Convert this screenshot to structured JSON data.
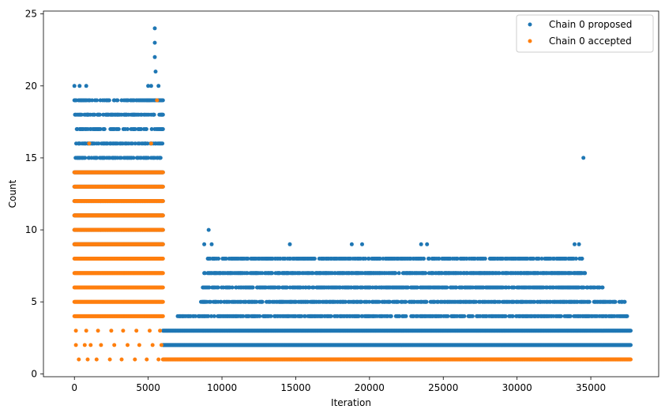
{
  "chart_data": {
    "type": "scatter",
    "title": "",
    "xlabel": "Iteration",
    "ylabel": "Count",
    "xlim": [
      -2100,
      39600
    ],
    "ylim": [
      -0.2,
      25.2
    ],
    "xticks": [
      0,
      5000,
      10000,
      15000,
      20000,
      25000,
      30000,
      35000
    ],
    "xtick_labels": [
      "0",
      "5000",
      "10000",
      "15000",
      "20000",
      "25000",
      "30000",
      "35000"
    ],
    "yticks": [
      0,
      5,
      10,
      15,
      20,
      25
    ],
    "ytick_labels": [
      "0",
      "5",
      "10",
      "15",
      "20",
      "25"
    ],
    "grid": false,
    "legend_position": "top-right",
    "marker": "dot",
    "series": [
      {
        "name": "Chain 0 proposed",
        "color": "#1f77b4",
        "points": [
          [
            0,
            20
          ],
          [
            100,
            18
          ],
          [
            200,
            17
          ],
          [
            300,
            16
          ],
          [
            350,
            20
          ],
          [
            500,
            19
          ],
          [
            800,
            20
          ],
          [
            900,
            18
          ],
          [
            1000,
            19
          ],
          [
            1100,
            17
          ],
          [
            4200,
            19
          ],
          [
            4500,
            18
          ],
          [
            4800,
            19
          ],
          [
            5000,
            20
          ],
          [
            5200,
            20
          ],
          [
            5300,
            19
          ],
          [
            5450,
            24
          ],
          [
            5450,
            23
          ],
          [
            5450,
            22
          ],
          [
            5500,
            21
          ],
          [
            5700,
            20
          ],
          [
            5900,
            19
          ],
          [
            8800,
            9
          ],
          [
            9100,
            10
          ],
          [
            9300,
            9
          ],
          [
            9500,
            8
          ],
          [
            14600,
            9
          ],
          [
            14400,
            7
          ],
          [
            18800,
            9
          ],
          [
            19500,
            9
          ],
          [
            19300,
            8
          ],
          [
            22600,
            8
          ],
          [
            23500,
            9
          ],
          [
            23900,
            9
          ],
          [
            24000,
            8
          ],
          [
            27800,
            7
          ],
          [
            29600,
            8
          ],
          [
            30100,
            8
          ],
          [
            30800,
            7
          ],
          [
            32800,
            7
          ],
          [
            33600,
            8
          ],
          [
            33900,
            9
          ],
          [
            34200,
            9
          ],
          [
            34400,
            8
          ],
          [
            34500,
            15
          ],
          [
            34600,
            7
          ],
          [
            35800,
            6
          ],
          [
            37300,
            5
          ],
          [
            3000,
            17
          ],
          [
            2000,
            16
          ]
        ],
        "bands": [
          {
            "y": 2,
            "from": 6000,
            "to": 37700
          },
          {
            "y": 3,
            "from": 6000,
            "to": 37700
          },
          {
            "y": 4,
            "from": 7000,
            "to": 37500
          },
          {
            "y": 5,
            "from": 8500,
            "to": 37300
          },
          {
            "y": 6,
            "from": 8700,
            "to": 35800
          },
          {
            "y": 7,
            "from": 8800,
            "to": 34600
          },
          {
            "y": 8,
            "from": 9000,
            "to": 34400
          },
          {
            "y": 9,
            "from": 0,
            "to": 6000
          },
          {
            "y": 10,
            "from": 0,
            "to": 6000
          },
          {
            "y": 11,
            "from": 0,
            "to": 6000
          },
          {
            "y": 12,
            "from": 0,
            "to": 6000
          },
          {
            "y": 13,
            "from": 0,
            "to": 6000
          },
          {
            "y": 14,
            "from": 0,
            "to": 6000
          },
          {
            "y": 15,
            "from": 0,
            "to": 6000
          },
          {
            "y": 16,
            "from": 0,
            "to": 6000
          },
          {
            "y": 17,
            "from": 0,
            "to": 6000
          },
          {
            "y": 18,
            "from": 0,
            "to": 6000
          },
          {
            "y": 19,
            "from": 0,
            "to": 6000
          }
        ]
      },
      {
        "name": "Chain 0 accepted",
        "color": "#ff7f0e",
        "points": [
          [
            100,
            2
          ],
          [
            300,
            1
          ],
          [
            700,
            2
          ],
          [
            900,
            1
          ],
          [
            1100,
            2
          ],
          [
            1500,
            1
          ],
          [
            1800,
            2
          ],
          [
            2400,
            1
          ],
          [
            2700,
            2
          ],
          [
            3200,
            1
          ],
          [
            3600,
            2
          ],
          [
            4100,
            1
          ],
          [
            4400,
            2
          ],
          [
            4900,
            1
          ],
          [
            5300,
            2
          ],
          [
            5700,
            1
          ],
          [
            5900,
            2
          ],
          [
            5600,
            19
          ],
          [
            5200,
            16
          ],
          [
            1000,
            16
          ],
          [
            100,
            3
          ],
          [
            800,
            3
          ],
          [
            1600,
            3
          ],
          [
            2500,
            3
          ],
          [
            3300,
            3
          ],
          [
            4200,
            3
          ],
          [
            5100,
            3
          ],
          [
            5800,
            3
          ]
        ],
        "bands": [
          {
            "y": 1,
            "from": 6000,
            "to": 37700
          },
          {
            "y": 4,
            "from": 0,
            "to": 6000
          },
          {
            "y": 5,
            "from": 0,
            "to": 6000
          },
          {
            "y": 6,
            "from": 0,
            "to": 6000
          },
          {
            "y": 7,
            "from": 0,
            "to": 6000
          },
          {
            "y": 8,
            "from": 0,
            "to": 6000
          },
          {
            "y": 9,
            "from": 0,
            "to": 6000
          },
          {
            "y": 10,
            "from": 0,
            "to": 6000
          },
          {
            "y": 11,
            "from": 0,
            "to": 6000
          },
          {
            "y": 12,
            "from": 0,
            "to": 6000
          },
          {
            "y": 13,
            "from": 0,
            "to": 6000
          },
          {
            "y": 14,
            "from": 0,
            "to": 6000
          }
        ]
      }
    ]
  }
}
